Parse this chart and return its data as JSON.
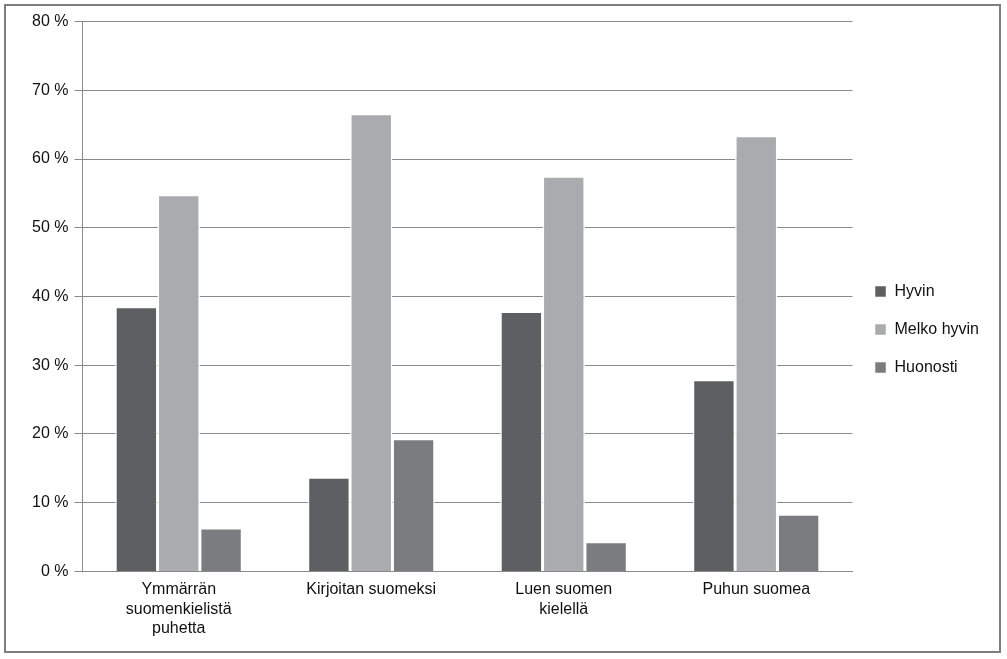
{
  "chart_data": {
    "type": "bar",
    "categories": [
      "Ymmärrän suomenkielistä puhetta",
      "Kirjoitan suomeksi",
      "Luen suomen kielellä",
      "Puhun suomea"
    ],
    "series": [
      {
        "name": "Hyvin",
        "color": "#5e5f63",
        "values": [
          38.5,
          13.7,
          37.8,
          27.9
        ]
      },
      {
        "name": "Melko hyvin",
        "color": "#a9abaf",
        "values": [
          54.8,
          66.6,
          57.5,
          63.4
        ]
      },
      {
        "name": "Huonosti",
        "color": "#7b7c80",
        "values": [
          6.3,
          19.3,
          4.3,
          8.3
        ]
      }
    ],
    "ylim": [
      0,
      80
    ],
    "yticks": [
      {
        "value": 0,
        "label": "0 %"
      },
      {
        "value": 10,
        "label": "10 %"
      },
      {
        "value": 20,
        "label": "20 %"
      },
      {
        "value": 30,
        "label": "30 %"
      },
      {
        "value": 40,
        "label": "40 %"
      },
      {
        "value": 50,
        "label": "50 %"
      },
      {
        "value": 60,
        "label": "60 %"
      },
      {
        "value": 70,
        "label": "70 %"
      },
      {
        "value": 80,
        "label": "80 %"
      }
    ],
    "grid": "y",
    "legend": "right"
  }
}
